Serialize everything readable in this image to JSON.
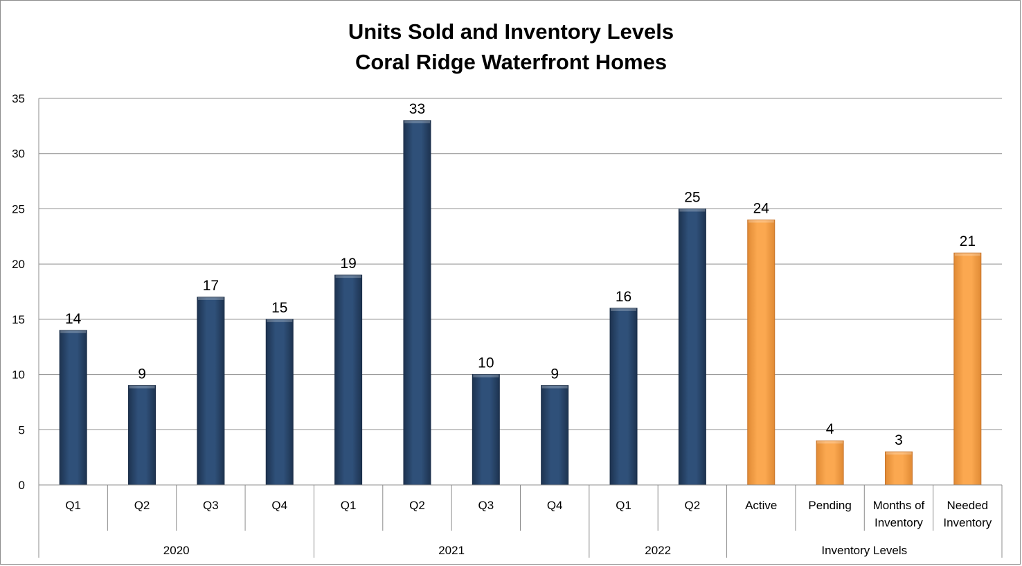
{
  "chart_data": {
    "type": "bar",
    "title_line1": "Units Sold and Inventory Levels",
    "title_line2": "Coral Ridge Waterfront Homes",
    "ylim": [
      0,
      35
    ],
    "yticks": [
      0,
      5,
      10,
      15,
      20,
      25,
      30,
      35
    ],
    "grid": true,
    "bars": [
      {
        "label": "Q1",
        "group": "2020",
        "value": 14,
        "color": "#2b4a70"
      },
      {
        "label": "Q2",
        "group": "2020",
        "value": 9,
        "color": "#2b4a70"
      },
      {
        "label": "Q3",
        "group": "2020",
        "value": 17,
        "color": "#2b4a70"
      },
      {
        "label": "Q4",
        "group": "2020",
        "value": 15,
        "color": "#2b4a70"
      },
      {
        "label": "Q1",
        "group": "2021",
        "value": 19,
        "color": "#2b4a70"
      },
      {
        "label": "Q2",
        "group": "2021",
        "value": 33,
        "color": "#2b4a70"
      },
      {
        "label": "Q3",
        "group": "2021",
        "value": 10,
        "color": "#2b4a70"
      },
      {
        "label": "Q4",
        "group": "2021",
        "value": 9,
        "color": "#2b4a70"
      },
      {
        "label": "Q1",
        "group": "2022",
        "value": 16,
        "color": "#2b4a70"
      },
      {
        "label": "Q2",
        "group": "2022",
        "value": 25,
        "color": "#2b4a70"
      },
      {
        "label": "Active",
        "group": "Inventory Levels",
        "value": 24,
        "color": "#f9a24a"
      },
      {
        "label": "Pending",
        "group": "Inventory Levels",
        "value": 4,
        "color": "#f9a24a"
      },
      {
        "label": "Months of Inventory",
        "group": "Inventory Levels",
        "value": 3,
        "color": "#f9a24a"
      },
      {
        "label": "Needed Inventory",
        "group": "Inventory Levels",
        "value": 21,
        "color": "#f9a24a"
      }
    ],
    "groups": [
      "2020",
      "2021",
      "2022",
      "Inventory Levels"
    ]
  }
}
